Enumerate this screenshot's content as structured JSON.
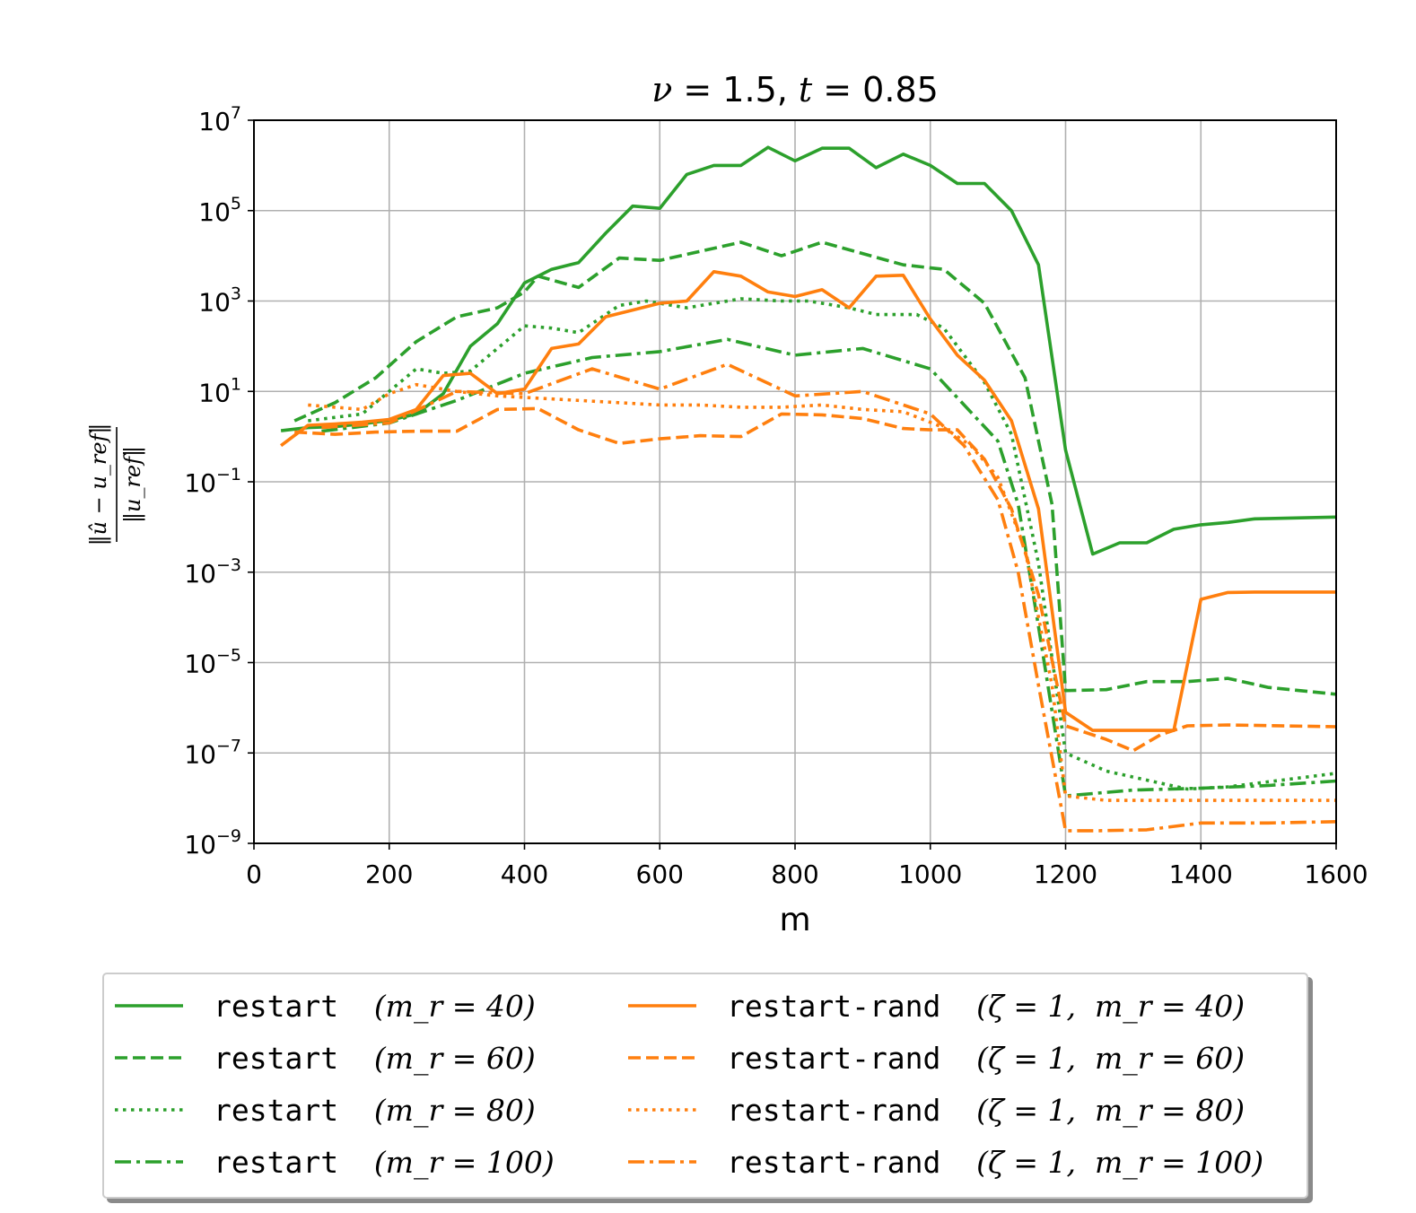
{
  "chart_data": {
    "type": "line",
    "title": "ν = 1.5, t = 0.85",
    "xlabel": "m",
    "ylabel": "‖û − u_ref‖ / ‖u_ref‖",
    "xlim": [
      0,
      1600
    ],
    "ylim_exponent": [
      -9,
      7
    ],
    "yscale": "log",
    "grid": true,
    "legend_position": "bottom",
    "x_ticks": [
      "0",
      "200",
      "400",
      "600",
      "800",
      "1000",
      "1200",
      "1400",
      "1600"
    ],
    "y_ticks": [
      {
        "base": "10",
        "exp": "−9",
        "value": -9
      },
      {
        "base": "10",
        "exp": "−7",
        "value": -7
      },
      {
        "base": "10",
        "exp": "−5",
        "value": -5
      },
      {
        "base": "10",
        "exp": "−3",
        "value": -3
      },
      {
        "base": "10",
        "exp": "−1",
        "value": -1
      },
      {
        "base": "10",
        "exp": "1",
        "value": 1
      },
      {
        "base": "10",
        "exp": "3",
        "value": 3
      },
      {
        "base": "10",
        "exp": "5",
        "value": 5
      },
      {
        "base": "10",
        "exp": "7",
        "value": 7
      }
    ],
    "series": [
      {
        "name": "restart (m_r = 40)",
        "legend_text": "restart",
        "legend_math": "(m_r = 40)",
        "color": "#2ca02c",
        "style": "solid",
        "points": [
          [
            40,
            0.13
          ],
          [
            80,
            0.2
          ],
          [
            120,
            0.22
          ],
          [
            160,
            0.28
          ],
          [
            200,
            0.36
          ],
          [
            240,
            0.5
          ],
          [
            280,
            0.95
          ],
          [
            320,
            2.0
          ],
          [
            360,
            2.5
          ],
          [
            400,
            3.4
          ],
          [
            440,
            3.7
          ],
          [
            480,
            3.85
          ],
          [
            520,
            4.5
          ],
          [
            560,
            5.1
          ],
          [
            600,
            5.05
          ],
          [
            640,
            5.8
          ],
          [
            680,
            6.0
          ],
          [
            720,
            6.0
          ],
          [
            760,
            6.4
          ],
          [
            800,
            6.1
          ],
          [
            840,
            6.38
          ],
          [
            880,
            6.38
          ],
          [
            920,
            5.95
          ],
          [
            960,
            6.25
          ],
          [
            1000,
            6.0
          ],
          [
            1040,
            5.6
          ],
          [
            1080,
            5.6
          ],
          [
            1120,
            5.0
          ],
          [
            1160,
            3.8
          ],
          [
            1200,
            -0.3
          ],
          [
            1240,
            -2.6
          ],
          [
            1280,
            -2.35
          ],
          [
            1320,
            -2.35
          ],
          [
            1360,
            -2.05
          ],
          [
            1400,
            -1.95
          ],
          [
            1440,
            -1.9
          ],
          [
            1480,
            -1.82
          ],
          [
            1600,
            -1.78
          ]
        ]
      },
      {
        "name": "restart (m_r = 60)",
        "legend_text": "restart",
        "legend_math": "(m_r = 60)",
        "color": "#2ca02c",
        "style": "dashed",
        "points": [
          [
            60,
            0.35
          ],
          [
            120,
            0.75
          ],
          [
            180,
            1.3
          ],
          [
            240,
            2.1
          ],
          [
            300,
            2.65
          ],
          [
            360,
            2.85
          ],
          [
            400,
            3.2
          ],
          [
            420,
            3.55
          ],
          [
            480,
            3.3
          ],
          [
            540,
            3.95
          ],
          [
            600,
            3.9
          ],
          [
            660,
            4.1
          ],
          [
            720,
            4.3
          ],
          [
            780,
            4.0
          ],
          [
            840,
            4.3
          ],
          [
            900,
            4.05
          ],
          [
            960,
            3.8
          ],
          [
            1020,
            3.7
          ],
          [
            1080,
            2.95
          ],
          [
            1140,
            1.3
          ],
          [
            1180,
            -1.5
          ],
          [
            1200,
            -5.62
          ],
          [
            1260,
            -5.6
          ],
          [
            1320,
            -5.42
          ],
          [
            1380,
            -5.42
          ],
          [
            1440,
            -5.35
          ],
          [
            1500,
            -5.55
          ],
          [
            1600,
            -5.7
          ]
        ]
      },
      {
        "name": "restart (m_r = 80)",
        "legend_text": "restart",
        "legend_math": "(m_r = 80)",
        "color": "#2ca02c",
        "style": "dotted",
        "points": [
          [
            80,
            0.35
          ],
          [
            160,
            0.5
          ],
          [
            240,
            1.5
          ],
          [
            280,
            1.4
          ],
          [
            320,
            1.45
          ],
          [
            400,
            2.45
          ],
          [
            440,
            2.4
          ],
          [
            480,
            2.3
          ],
          [
            540,
            2.9
          ],
          [
            580,
            3.0
          ],
          [
            640,
            2.85
          ],
          [
            720,
            3.05
          ],
          [
            780,
            3.0
          ],
          [
            820,
            3.0
          ],
          [
            880,
            2.85
          ],
          [
            920,
            2.7
          ],
          [
            980,
            2.7
          ],
          [
            1020,
            2.4
          ],
          [
            1080,
            1.2
          ],
          [
            1120,
            0.05
          ],
          [
            1160,
            -2.8
          ],
          [
            1200,
            -7.0
          ],
          [
            1260,
            -7.4
          ],
          [
            1320,
            -7.6
          ],
          [
            1380,
            -7.8
          ],
          [
            1440,
            -7.75
          ],
          [
            1520,
            -7.6
          ],
          [
            1600,
            -7.45
          ]
        ]
      },
      {
        "name": "restart (m_r = 100)",
        "legend_text": "restart",
        "legend_math": "(m_r = 100)",
        "color": "#2ca02c",
        "style": "dashdot",
        "points": [
          [
            100,
            0.12
          ],
          [
            200,
            0.3
          ],
          [
            300,
            0.8
          ],
          [
            400,
            1.4
          ],
          [
            500,
            1.75
          ],
          [
            600,
            1.88
          ],
          [
            700,
            2.15
          ],
          [
            800,
            1.8
          ],
          [
            900,
            1.95
          ],
          [
            1000,
            1.5
          ],
          [
            1100,
            -0.1
          ],
          [
            1130,
            -1.5
          ],
          [
            1160,
            -4.2
          ],
          [
            1200,
            -7.95
          ],
          [
            1300,
            -7.82
          ],
          [
            1400,
            -7.78
          ],
          [
            1500,
            -7.72
          ],
          [
            1600,
            -7.62
          ]
        ]
      },
      {
        "name": "restart-rand (ζ = 1, m_r = 40)",
        "legend_text": "restart-rand",
        "legend_math": "(ζ = 1,  m_r = 40)",
        "color": "#ff7f0e",
        "style": "solid",
        "points": [
          [
            40,
            -0.2
          ],
          [
            80,
            0.25
          ],
          [
            120,
            0.28
          ],
          [
            160,
            0.32
          ],
          [
            200,
            0.38
          ],
          [
            240,
            0.6
          ],
          [
            280,
            1.35
          ],
          [
            320,
            1.4
          ],
          [
            360,
            0.95
          ],
          [
            400,
            1.05
          ],
          [
            440,
            1.95
          ],
          [
            480,
            2.05
          ],
          [
            520,
            2.65
          ],
          [
            560,
            2.8
          ],
          [
            600,
            2.95
          ],
          [
            640,
            3.0
          ],
          [
            680,
            3.65
          ],
          [
            720,
            3.55
          ],
          [
            760,
            3.2
          ],
          [
            800,
            3.1
          ],
          [
            840,
            3.25
          ],
          [
            880,
            2.85
          ],
          [
            920,
            3.55
          ],
          [
            960,
            3.57
          ],
          [
            1000,
            2.6
          ],
          [
            1040,
            1.8
          ],
          [
            1080,
            1.25
          ],
          [
            1120,
            0.35
          ],
          [
            1160,
            -1.6
          ],
          [
            1200,
            -6.1
          ],
          [
            1240,
            -6.5
          ],
          [
            1300,
            -6.5
          ],
          [
            1360,
            -6.5
          ],
          [
            1400,
            -3.6
          ],
          [
            1440,
            -3.45
          ],
          [
            1480,
            -3.44
          ],
          [
            1600,
            -3.44
          ]
        ]
      },
      {
        "name": "restart-rand (ζ = 1, m_r = 60)",
        "legend_text": "restart-rand",
        "legend_math": "(ζ = 1,  m_r = 60)",
        "color": "#ff7f0e",
        "style": "dashed",
        "points": [
          [
            60,
            0.1
          ],
          [
            120,
            0.05
          ],
          [
            180,
            0.1
          ],
          [
            240,
            0.12
          ],
          [
            300,
            0.12
          ],
          [
            360,
            0.6
          ],
          [
            420,
            0.62
          ],
          [
            480,
            0.15
          ],
          [
            540,
            -0.15
          ],
          [
            600,
            -0.05
          ],
          [
            660,
            0.02
          ],
          [
            720,
            0.0
          ],
          [
            780,
            0.5
          ],
          [
            840,
            0.48
          ],
          [
            900,
            0.4
          ],
          [
            960,
            0.18
          ],
          [
            1000,
            0.15
          ],
          [
            1040,
            0.15
          ],
          [
            1080,
            -0.5
          ],
          [
            1120,
            -1.6
          ],
          [
            1160,
            -3.5
          ],
          [
            1200,
            -6.4
          ],
          [
            1260,
            -6.7
          ],
          [
            1300,
            -6.95
          ],
          [
            1340,
            -6.6
          ],
          [
            1380,
            -6.4
          ],
          [
            1440,
            -6.38
          ],
          [
            1600,
            -6.42
          ]
        ]
      },
      {
        "name": "restart-rand (ζ = 1, m_r = 80)",
        "legend_text": "restart-rand",
        "legend_math": "(ζ = 1,  m_r = 80)",
        "color": "#ff7f0e",
        "style": "dotted",
        "points": [
          [
            80,
            0.7
          ],
          [
            120,
            0.65
          ],
          [
            160,
            0.6
          ],
          [
            200,
            0.95
          ],
          [
            240,
            1.15
          ],
          [
            300,
            1.0
          ],
          [
            360,
            0.9
          ],
          [
            420,
            0.85
          ],
          [
            480,
            0.8
          ],
          [
            540,
            0.75
          ],
          [
            600,
            0.7
          ],
          [
            660,
            0.7
          ],
          [
            720,
            0.65
          ],
          [
            780,
            0.65
          ],
          [
            840,
            0.7
          ],
          [
            900,
            0.6
          ],
          [
            960,
            0.55
          ],
          [
            1020,
            0.2
          ],
          [
            1060,
            -0.2
          ],
          [
            1100,
            -0.9
          ],
          [
            1140,
            -2.5
          ],
          [
            1180,
            -5.5
          ],
          [
            1200,
            -7.95
          ],
          [
            1260,
            -8.05
          ],
          [
            1330,
            -8.05
          ],
          [
            1400,
            -8.05
          ],
          [
            1500,
            -8.05
          ],
          [
            1600,
            -8.05
          ]
        ]
      },
      {
        "name": "restart-rand (ζ = 1, m_r = 100)",
        "legend_text": "restart-rand",
        "legend_math": "(ζ = 1,  m_r = 100)",
        "color": "#ff7f0e",
        "style": "dashdot",
        "points": [
          [
            100,
            0.2
          ],
          [
            200,
            0.3
          ],
          [
            300,
            1.0
          ],
          [
            400,
            0.95
          ],
          [
            500,
            1.5
          ],
          [
            600,
            1.05
          ],
          [
            700,
            1.6
          ],
          [
            800,
            0.9
          ],
          [
            900,
            1.0
          ],
          [
            1000,
            0.5
          ],
          [
            1050,
            -0.2
          ],
          [
            1100,
            -1.4
          ],
          [
            1130,
            -3.0
          ],
          [
            1160,
            -5.5
          ],
          [
            1200,
            -8.72
          ],
          [
            1250,
            -8.72
          ],
          [
            1320,
            -8.7
          ],
          [
            1400,
            -8.55
          ],
          [
            1500,
            -8.55
          ],
          [
            1600,
            -8.52
          ]
        ]
      }
    ]
  }
}
